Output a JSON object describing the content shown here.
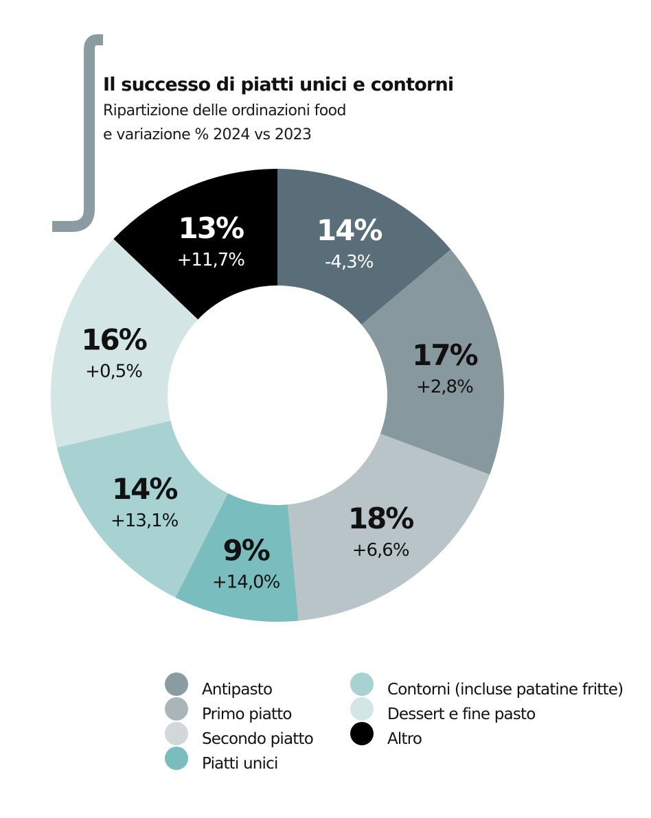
{
  "header": {
    "title": "Il successo di piatti unici e contorni",
    "subtitle_line1": "Ripartizione delle ordinazioni food",
    "subtitle_line2": "e variazione % 2024 vs 2023"
  },
  "chart_data": {
    "type": "donut",
    "title": "Il successo di piatti unici e contorni",
    "subtitle": "Ripartizione delle ordinazioni food e variazione % 2024 vs 2023",
    "start": "top, clockwise",
    "slices": [
      {
        "category": "Antipasto",
        "share": 14,
        "share_label": "14%",
        "change": -4.3,
        "change_label": "-4,3%",
        "color": "#596e78",
        "text_color": "#ffffff"
      },
      {
        "category": "Primo piatto",
        "share": 17,
        "share_label": "17%",
        "change": 2.8,
        "change_label": "+2,8%",
        "color": "#87999f",
        "text_color": "#111111"
      },
      {
        "category": "Secondo piatto",
        "share": 18,
        "share_label": "18%",
        "change": 6.6,
        "change_label": "+6,6%",
        "color": "#b8c4c8",
        "text_color": "#111111"
      },
      {
        "category": "Piatti unici",
        "share": 9,
        "share_label": "9%",
        "change": 14.0,
        "change_label": "+14,0%",
        "color": "#79bdbf",
        "text_color": "#111111"
      },
      {
        "category": "Contorni (incluse patatine fritte)",
        "share": 14,
        "share_label": "14%",
        "change": 13.1,
        "change_label": "+13,1%",
        "color": "#a8d2d2",
        "text_color": "#111111"
      },
      {
        "category": "Dessert e fine pasto",
        "share": 16,
        "share_label": "16%",
        "change": 0.5,
        "change_label": "+0,5%",
        "color": "#d3e5e5",
        "text_color": "#111111"
      },
      {
        "category": "Altro",
        "share": 13,
        "share_label": "13%",
        "change": 11.7,
        "change_label": "+11,7%",
        "color": "#000000",
        "text_color": "#ffffff"
      }
    ],
    "legend_position": "bottom"
  },
  "legend": {
    "items": [
      {
        "label": "Antipasto",
        "color": "#8a9ca1"
      },
      {
        "label": "Primo piatto",
        "color": "#a9b5b9"
      },
      {
        "label": "Secondo piatto",
        "color": "#d2d7d9"
      },
      {
        "label": "Piatti unici",
        "color": "#79bdbf"
      },
      {
        "label": "Contorni (incluse patatine fritte)",
        "color": "#a8d2d2"
      },
      {
        "label": "Dessert e fine pasto",
        "color": "#d3e5e5"
      },
      {
        "label": "Altro",
        "color": "#000000"
      }
    ]
  },
  "decoration": {
    "bracket_color": "#8a9ca1"
  }
}
